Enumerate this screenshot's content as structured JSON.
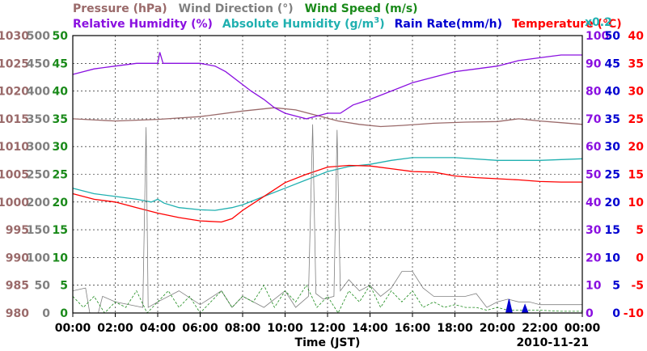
{
  "chart_data": {
    "type": "line",
    "date": "2010-11-21",
    "x_title": "Time (JST)",
    "x_ticks": [
      "00:00",
      "02:00",
      "04:00",
      "06:00",
      "08:00",
      "10:00",
      "12:00",
      "14:00",
      "16:00",
      "18:00",
      "20:00",
      "22:00",
      "00:00"
    ],
    "x_range_hours": [
      0,
      24
    ],
    "legend_row1": [
      {
        "label": "Pressure (hPa)",
        "color": "#9a6a6a"
      },
      {
        "label": "Wind Direction (°)",
        "color": "#808080"
      },
      {
        "label": "Wind Speed (m/s)",
        "color": "#1a8a1a"
      }
    ],
    "legend_row2": [
      {
        "label": "Relative Humidity (%)",
        "color": "#8a10e0"
      },
      {
        "label": "Absolute Humidity (g/m",
        "sup": "3",
        "close": ")",
        "color": "#20b0b0"
      },
      {
        "label": "Rain Rate(mm/h)",
        "color": "#0000d0"
      },
      {
        "label": "Temperature (°C)",
        "color": "#ff0000"
      }
    ],
    "rain_scale_note": "x0.2",
    "axes": {
      "pressure": {
        "range": [
          980,
          1030
        ],
        "ticks": [
          "980",
          "985",
          "990",
          "995",
          "1000",
          "1005",
          "1010",
          "1015",
          "1020",
          "1025",
          "1030"
        ],
        "color": "#9a6a6a"
      },
      "wind_dir": {
        "range": [
          0,
          500
        ],
        "ticks": [
          "0",
          "50",
          "100",
          "150",
          "200",
          "250",
          "300",
          "350",
          "400",
          "450",
          "500"
        ],
        "color": "#808080"
      },
      "wind_speed": {
        "range": [
          0,
          50
        ],
        "ticks": [
          "0",
          "5",
          "10",
          "15",
          "20",
          "25",
          "30",
          "35",
          "40",
          "45",
          "50"
        ],
        "color": "#1a8a1a"
      },
      "humidity_pct": {
        "range": [
          0,
          100
        ],
        "ticks": [
          "0",
          "10",
          "20",
          "30",
          "40",
          "50",
          "60",
          "70",
          "80",
          "90",
          "100"
        ],
        "color": "#8a10e0"
      },
      "abs_hum_rain": {
        "range": [
          0,
          50
        ],
        "ticks": [
          "0",
          "5",
          "10",
          "15",
          "20",
          "25",
          "30",
          "35",
          "40",
          "45",
          "50"
        ],
        "color": "#0000d0"
      },
      "temperature": {
        "range": [
          -10,
          40
        ],
        "ticks": [
          "-10",
          "-5",
          "0",
          "5",
          "10",
          "15",
          "20",
          "25",
          "30",
          "35",
          "40"
        ],
        "color": "#ff0000"
      }
    },
    "series": [
      {
        "name": "Pressure (hPa)",
        "color": "#9a6a6a",
        "axis": "pressure",
        "points": [
          [
            0,
            1015
          ],
          [
            2,
            1014.6
          ],
          [
            4,
            1014.9
          ],
          [
            6,
            1015.4
          ],
          [
            8,
            1016.4
          ],
          [
            9.5,
            1017.0
          ],
          [
            10.5,
            1016.6
          ],
          [
            11.5,
            1015.6
          ],
          [
            12.5,
            1014.6
          ],
          [
            13.5,
            1014.0
          ],
          [
            14.5,
            1013.6
          ],
          [
            15.5,
            1013.8
          ],
          [
            17,
            1014.2
          ],
          [
            18.5,
            1014.4
          ],
          [
            20,
            1014.5
          ],
          [
            21,
            1015.0
          ],
          [
            22,
            1014.6
          ],
          [
            23,
            1014.3
          ],
          [
            24,
            1014.0
          ]
        ]
      },
      {
        "name": "Relative Humidity (%)",
        "color": "#8a10e0",
        "axis": "humidity_pct",
        "points": [
          [
            0,
            86
          ],
          [
            0.5,
            87
          ],
          [
            1,
            88
          ],
          [
            2,
            89
          ],
          [
            3,
            90
          ],
          [
            4,
            90
          ],
          [
            4.1,
            94
          ],
          [
            4.25,
            90
          ],
          [
            6,
            90
          ],
          [
            6.7,
            89
          ],
          [
            7.2,
            87
          ],
          [
            8.4,
            80
          ],
          [
            9,
            77
          ],
          [
            9.5,
            74
          ],
          [
            10,
            72
          ],
          [
            10.5,
            71
          ],
          [
            11,
            70
          ],
          [
            11.5,
            71
          ],
          [
            12,
            72
          ],
          [
            12.6,
            72
          ],
          [
            13.2,
            75
          ],
          [
            14,
            77
          ],
          [
            15,
            80
          ],
          [
            16,
            83
          ],
          [
            17,
            85
          ],
          [
            18,
            87
          ],
          [
            19,
            88
          ],
          [
            20,
            89
          ],
          [
            21,
            91
          ],
          [
            22,
            92
          ],
          [
            23,
            93
          ],
          [
            24,
            93
          ]
        ]
      },
      {
        "name": "Absolute Humidity (g/m3)",
        "color": "#20b0b0",
        "axis": "abs_hum_rain",
        "points": [
          [
            0,
            22.5
          ],
          [
            1,
            21.5
          ],
          [
            2,
            21
          ],
          [
            3,
            20.5
          ],
          [
            3.7,
            20
          ],
          [
            4,
            20.5
          ],
          [
            4.3,
            19.8
          ],
          [
            5,
            19
          ],
          [
            6,
            18.6
          ],
          [
            6.7,
            18.5
          ],
          [
            7.5,
            19
          ],
          [
            8,
            19.5
          ],
          [
            9,
            21
          ],
          [
            10,
            22.5
          ],
          [
            11,
            24
          ],
          [
            12,
            25.5
          ],
          [
            13,
            26.4
          ],
          [
            14,
            26.8
          ],
          [
            15,
            27.5
          ],
          [
            16,
            28
          ],
          [
            18,
            28
          ],
          [
            20,
            27.5
          ],
          [
            22,
            27.5
          ],
          [
            24,
            27.8
          ]
        ]
      },
      {
        "name": "Temperature (°C)",
        "color": "#ff0000",
        "axis": "temperature",
        "points": [
          [
            0,
            11.5
          ],
          [
            1,
            10.5
          ],
          [
            2,
            10
          ],
          [
            3,
            9
          ],
          [
            4,
            8
          ],
          [
            5,
            7.2
          ],
          [
            6,
            6.6
          ],
          [
            7,
            6.4
          ],
          [
            7.5,
            7
          ],
          [
            8,
            8.5
          ],
          [
            9,
            11
          ],
          [
            10,
            13.5
          ],
          [
            11,
            15
          ],
          [
            12,
            16.3
          ],
          [
            13,
            16.6
          ],
          [
            14,
            16.5
          ],
          [
            15,
            16
          ],
          [
            16,
            15.5
          ],
          [
            17,
            15.4
          ],
          [
            18,
            14.7
          ],
          [
            19,
            14.4
          ],
          [
            20,
            14.2
          ],
          [
            21,
            14
          ],
          [
            22,
            13.7
          ],
          [
            23,
            13.6
          ],
          [
            24,
            13.6
          ]
        ]
      },
      {
        "name": "Wind Direction (°)",
        "color": "#808080",
        "axis": "wind_dir",
        "points": [
          [
            0,
            40
          ],
          [
            0.6,
            45
          ],
          [
            0.8,
            0
          ],
          [
            1.2,
            0
          ],
          [
            1.4,
            30
          ],
          [
            2,
            20
          ],
          [
            3.3,
            10
          ],
          [
            3.45,
            335
          ],
          [
            3.55,
            10
          ],
          [
            4,
            20
          ],
          [
            5,
            40
          ],
          [
            6,
            15
          ],
          [
            7,
            40
          ],
          [
            7.5,
            10
          ],
          [
            8,
            30
          ],
          [
            9,
            10
          ],
          [
            10,
            40
          ],
          [
            10.5,
            10
          ],
          [
            11.1,
            30
          ],
          [
            11.3,
            340
          ],
          [
            11.45,
            35
          ],
          [
            11.8,
            25
          ],
          [
            12.3,
            30
          ],
          [
            12.45,
            330
          ],
          [
            12.6,
            40
          ],
          [
            13,
            60
          ],
          [
            13.5,
            40
          ],
          [
            14,
            50
          ],
          [
            14.5,
            30
          ],
          [
            15,
            45
          ],
          [
            15.5,
            75
          ],
          [
            16,
            75
          ],
          [
            16.5,
            45
          ],
          [
            17,
            30
          ],
          [
            18,
            30
          ],
          [
            18.5,
            30
          ],
          [
            19,
            35
          ],
          [
            19.5,
            10
          ],
          [
            20,
            20
          ],
          [
            20.5,
            25
          ],
          [
            21,
            20
          ],
          [
            21.5,
            20
          ],
          [
            22,
            15
          ],
          [
            23,
            15
          ],
          [
            24,
            15
          ]
        ]
      },
      {
        "name": "Wind Speed (m/s)",
        "color": "#1a8a1a",
        "axis": "wind_speed",
        "points": [
          [
            0,
            3
          ],
          [
            0.5,
            1
          ],
          [
            1,
            3
          ],
          [
            1.5,
            0
          ],
          [
            2,
            2
          ],
          [
            2.5,
            1
          ],
          [
            3,
            4
          ],
          [
            3.5,
            0
          ],
          [
            4,
            2
          ],
          [
            4.5,
            4
          ],
          [
            5,
            1
          ],
          [
            5.5,
            3
          ],
          [
            6,
            0
          ],
          [
            6.5,
            2
          ],
          [
            7,
            4
          ],
          [
            7.5,
            1
          ],
          [
            8,
            3
          ],
          [
            8.5,
            2
          ],
          [
            9,
            5
          ],
          [
            9.5,
            1
          ],
          [
            10,
            4
          ],
          [
            10.5,
            2
          ],
          [
            11,
            5
          ],
          [
            11.5,
            1
          ],
          [
            12,
            3
          ],
          [
            12.5,
            0
          ],
          [
            13,
            4
          ],
          [
            13.5,
            2
          ],
          [
            14,
            5
          ],
          [
            14.5,
            1
          ],
          [
            15,
            4
          ],
          [
            15.5,
            2
          ],
          [
            16,
            4
          ],
          [
            16.5,
            1
          ],
          [
            17,
            2
          ],
          [
            17.5,
            1
          ],
          [
            18,
            1.5
          ],
          [
            18.5,
            1
          ],
          [
            19,
            1
          ],
          [
            19.5,
            0.5
          ],
          [
            20,
            1
          ],
          [
            20.5,
            0.5
          ],
          [
            21,
            0.5
          ],
          [
            22,
            0.5
          ],
          [
            23,
            0.3
          ],
          [
            24,
            0.3
          ]
        ]
      },
      {
        "name": "Rain Rate (mm/h)",
        "color": "#0000d0",
        "axis": "abs_hum_rain",
        "points": [
          [
            20.4,
            0
          ],
          [
            20.55,
            2.5
          ],
          [
            20.7,
            0
          ],
          [
            21.15,
            0
          ],
          [
            21.3,
            1.5
          ],
          [
            21.45,
            0
          ]
        ]
      }
    ]
  }
}
